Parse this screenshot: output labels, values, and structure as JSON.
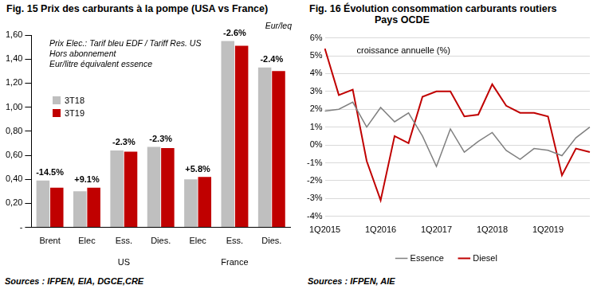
{
  "chart_data": [
    {
      "type": "bar",
      "title": "Fig. 15 Prix des carburants  à la pompe (USA vs France)",
      "unit": "Eur/leq",
      "notes": [
        "Prix Elec.: Tarif bleu EDF / Tariff Res. US",
        "Hors abonnement",
        "Eur/litre équivalent essence"
      ],
      "categories": [
        "Brent",
        "Elec",
        "Ess.",
        "Dies.",
        "Elec",
        "Ess.",
        "Dies."
      ],
      "groups": [
        null,
        null,
        "US",
        null,
        null,
        "France",
        null
      ],
      "series": [
        {
          "name": "3T18",
          "color": "#bfbfbf",
          "values": [
            0.39,
            0.3,
            0.64,
            0.67,
            0.4,
            1.55,
            1.33
          ]
        },
        {
          "name": "3T19",
          "color": "#c00000",
          "values": [
            0.33,
            0.33,
            0.63,
            0.66,
            0.42,
            1.51,
            1.3
          ]
        }
      ],
      "annotations": [
        "-14.5%",
        "+9.1%",
        "-2.3%",
        "-2.3%",
        "+5.8%",
        "-2.6%",
        "-2.4%"
      ],
      "ylim": [
        0,
        1.6
      ],
      "yticks": [
        {
          "value": 0,
          "label": "-"
        },
        {
          "value": 0.2,
          "label": "0,20"
        },
        {
          "value": 0.4,
          "label": "0,40"
        },
        {
          "value": 0.6,
          "label": "0,60"
        },
        {
          "value": 0.8,
          "label": "0,80"
        },
        {
          "value": 1.0,
          "label": "1,00"
        },
        {
          "value": 1.2,
          "label": "1,20"
        },
        {
          "value": 1.4,
          "label": "1,40"
        },
        {
          "value": 1.6,
          "label": "1,60"
        }
      ],
      "grid": false,
      "legend": "upper left",
      "source": "Sources : IFPEN, EIA, DGCE,CRE"
    },
    {
      "type": "line",
      "title": "Fig. 16 Évolution consommation carburants routiers",
      "subtitle": "Pays OCDE",
      "annotations": [
        "croissance annuelle (%)"
      ],
      "categories": [
        "1Q2015",
        null,
        null,
        null,
        "1Q2016",
        null,
        null,
        null,
        "1Q2017",
        null,
        null,
        null,
        "1Q2018",
        null,
        null,
        null,
        "1Q2019",
        null,
        null,
        null
      ],
      "series": [
        {
          "name": "Essence",
          "color": "#808080",
          "values": [
            1.9,
            2.0,
            2.4,
            1.0,
            2.1,
            1.3,
            1.8,
            0.5,
            -1.2,
            0.9,
            -0.4,
            0.2,
            0.7,
            -0.3,
            -0.8,
            -0.2,
            -0.3,
            -0.6,
            0.4,
            1.0
          ]
        },
        {
          "name": "Diesel",
          "color": "#c00000",
          "values": [
            5.4,
            2.8,
            3.1,
            -0.9,
            -3.1,
            0.5,
            0.1,
            2.7,
            3.0,
            3.0,
            1.6,
            1.7,
            3.4,
            2.2,
            1.8,
            1.8,
            1.6,
            -1.7,
            -0.2,
            -0.4
          ]
        }
      ],
      "ylim": [
        -4,
        6
      ],
      "yticks": [
        {
          "value": -4,
          "label": "-4%"
        },
        {
          "value": -3,
          "label": "-3%"
        },
        {
          "value": -2,
          "label": "-2%"
        },
        {
          "value": -1,
          "label": "-1%"
        },
        {
          "value": 0,
          "label": "0%"
        },
        {
          "value": 1,
          "label": "1%"
        },
        {
          "value": 2,
          "label": "2%"
        },
        {
          "value": 3,
          "label": "3%"
        },
        {
          "value": 4,
          "label": "4%"
        },
        {
          "value": 5,
          "label": "5%"
        },
        {
          "value": 6,
          "label": "6%"
        }
      ],
      "grid": true,
      "legend": "bottom",
      "source": "Sources : IFPEN, AIE"
    }
  ]
}
